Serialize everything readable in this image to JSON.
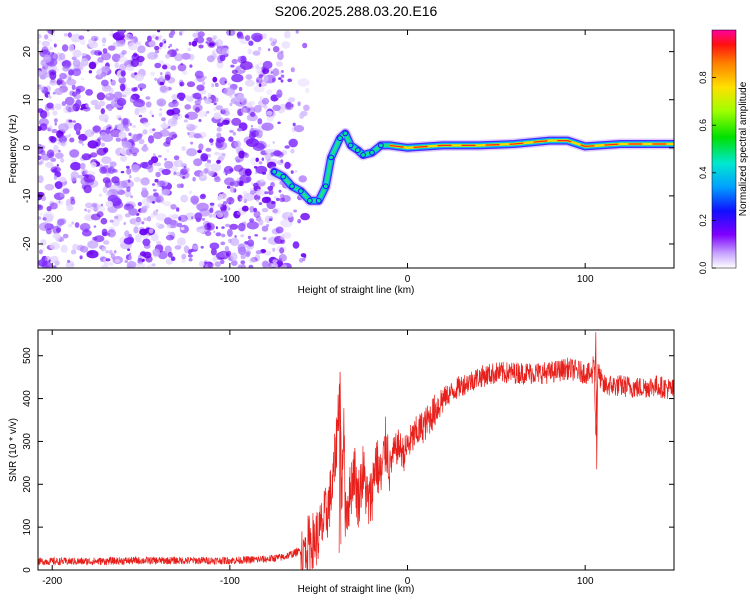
{
  "title": "S206.2025.288.03.20.E16",
  "chart_data": [
    {
      "type": "heatmap",
      "title": "",
      "xlabel": "Height of straight line (km)",
      "ylabel": "Frequency (Hz)",
      "xlim": [
        -208,
        150
      ],
      "ylim": [
        -25,
        24.5
      ],
      "xticks": [
        -200,
        -100,
        0,
        100
      ],
      "yticks": [
        -20,
        -10,
        0,
        10,
        20
      ],
      "colorbar": {
        "label": "Normalized spectral amplitude",
        "ticks": [
          "0.0",
          "0.2",
          "0.4",
          "0.6",
          "0.8"
        ],
        "range": [
          0,
          1
        ]
      },
      "noise_region": {
        "x_range": [
          -208,
          -60
        ],
        "freq_range": [
          -25,
          24.5
        ]
      },
      "signal_trace": [
        {
          "x": -75,
          "f": -5
        },
        {
          "x": -70,
          "f": -6
        },
        {
          "x": -65,
          "f": -8
        },
        {
          "x": -60,
          "f": -9
        },
        {
          "x": -55,
          "f": -11
        },
        {
          "x": -50,
          "f": -11
        },
        {
          "x": -46,
          "f": -8
        },
        {
          "x": -43,
          "f": -2
        },
        {
          "x": -38,
          "f": 2
        },
        {
          "x": -35,
          "f": 3
        },
        {
          "x": -32,
          "f": 0.5
        },
        {
          "x": -28,
          "f": -0.5
        },
        {
          "x": -25,
          "f": -1.5
        },
        {
          "x": -20,
          "f": -1
        },
        {
          "x": -15,
          "f": 0.5
        },
        {
          "x": -10,
          "f": 0.5
        },
        {
          "x": 0,
          "f": 0
        },
        {
          "x": 20,
          "f": 0.5
        },
        {
          "x": 40,
          "f": 0.5
        },
        {
          "x": 60,
          "f": 0.8
        },
        {
          "x": 80,
          "f": 1.5
        },
        {
          "x": 90,
          "f": 1.5
        },
        {
          "x": 100,
          "f": 0.3
        },
        {
          "x": 120,
          "f": 0.8
        },
        {
          "x": 150,
          "f": 0.8
        }
      ]
    },
    {
      "type": "line",
      "title": "",
      "xlabel": "Height of straight line (km)",
      "ylabel": "SNR (10 * v/v)",
      "xlim": [
        -208,
        150
      ],
      "ylim": [
        0,
        560
      ],
      "xticks": [
        -200,
        -100,
        0,
        100
      ],
      "yticks": [
        0,
        100,
        200,
        300,
        400,
        500
      ],
      "color": "#e8201c",
      "series": [
        {
          "name": "SNR",
          "x": [
            -208,
            -180,
            -150,
            -120,
            -100,
            -80,
            -70,
            -60,
            -50,
            -45,
            -42,
            -40,
            -38,
            -37,
            -36,
            -35,
            -33,
            -30,
            -28,
            -25,
            -22,
            -20,
            -18,
            -15,
            -12,
            -10,
            -8,
            -5,
            -2,
            0,
            5,
            10,
            15,
            20,
            30,
            40,
            50,
            60,
            70,
            80,
            90,
            95,
            100,
            104,
            105,
            106,
            107,
            108,
            110,
            120,
            130,
            140,
            150
          ],
          "values": [
            20,
            20,
            22,
            22,
            22,
            25,
            30,
            45,
            80,
            140,
            200,
            300,
            440,
            160,
            350,
            140,
            160,
            240,
            160,
            230,
            150,
            180,
            260,
            210,
            300,
            240,
            270,
            290,
            270,
            290,
            320,
            340,
            370,
            400,
            430,
            450,
            460,
            460,
            460,
            460,
            470,
            465,
            460,
            455,
            510,
            300,
            460,
            455,
            430,
            430,
            425,
            430,
            420
          ]
        }
      ]
    }
  ]
}
